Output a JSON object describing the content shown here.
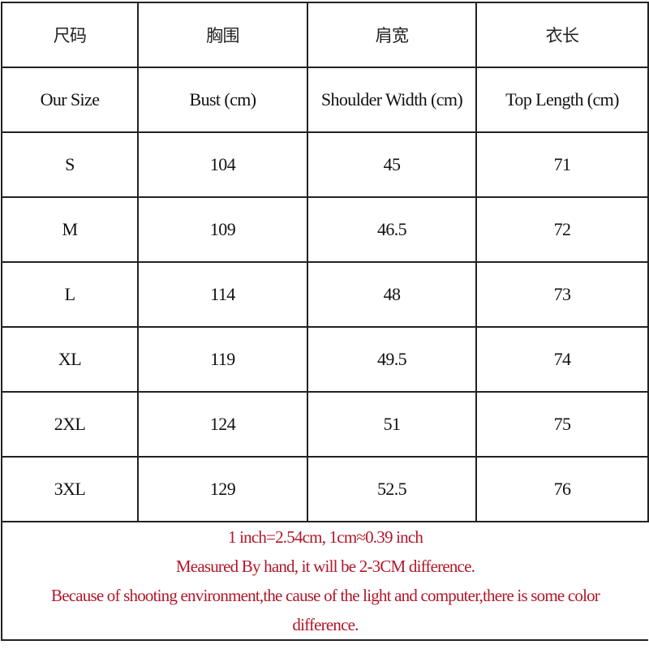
{
  "header_cn": [
    "尺码",
    "胸围",
    "肩宽",
    "衣长"
  ],
  "header_en": [
    "Our Size",
    "Bust (cm)",
    "Shoulder Width (cm)",
    "Top Length (cm)"
  ],
  "rows": [
    [
      "S",
      "104",
      "45",
      "71"
    ],
    [
      "M",
      "109",
      "46.5",
      "72"
    ],
    [
      "L",
      "114",
      "48",
      "73"
    ],
    [
      "XL",
      "119",
      "49.5",
      "74"
    ],
    [
      "2XL",
      "124",
      "51",
      "75"
    ],
    [
      "3XL",
      "129",
      "52.5",
      "76"
    ]
  ],
  "notes": {
    "line1": "1 inch=2.54cm, 1cm≈0.39 inch",
    "line2": "Measured By hand, it will be 2-3CM difference.",
    "line3": "Because of shooting environment,the cause of the light and computer,there is some color",
    "line4": "difference."
  },
  "colors": {
    "note_text": "#b0182a",
    "border": "#222222"
  }
}
